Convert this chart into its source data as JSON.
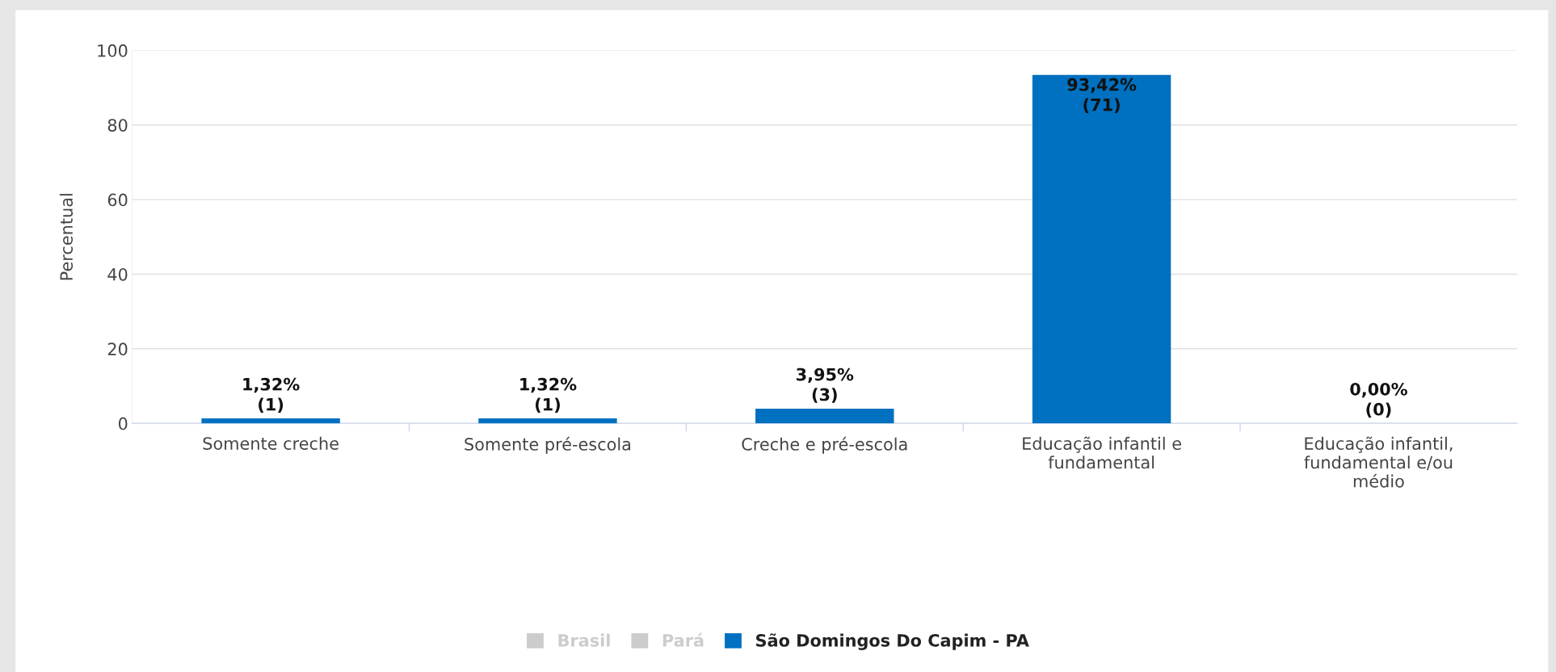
{
  "chart_data": {
    "type": "bar",
    "ylabel": "Percentual",
    "categories": [
      "Somente creche",
      "Somente pré-escola",
      "Creche e pré-escola",
      "Educação infantil e\nfundamental",
      "Educação infantil,\nfundamental e/ou\nmédio"
    ],
    "series": [
      {
        "name": "Brasil",
        "color": "#cccccc",
        "values": [
          null,
          null,
          null,
          null,
          null
        ]
      },
      {
        "name": "Pará",
        "color": "#cccccc",
        "values": [
          null,
          null,
          null,
          null,
          null
        ]
      },
      {
        "name": "São Domingos Do Capim - PA",
        "color": "#0070c0",
        "values": [
          1.32,
          1.32,
          3.95,
          93.42,
          0
        ],
        "value_labels": [
          "1,32%\n(1)",
          "1,32%\n(1)",
          "3,95%\n(3)",
          "93,42%\n(71)",
          "0,00%\n(0)"
        ]
      }
    ],
    "ylim": [
      0,
      100
    ],
    "yticks": [
      0,
      20,
      40,
      60,
      80,
      100
    ],
    "grid": "y",
    "legend": "bottom"
  }
}
